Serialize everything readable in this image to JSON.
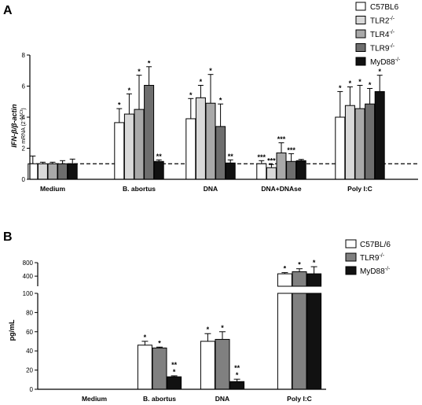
{
  "figure": {
    "panel_a_letter": "A",
    "panel_b_letter": "B"
  },
  "chart_data": [
    {
      "type": "bar",
      "panel": "A",
      "ylabel": "IFN-β/β-actin",
      "ylabel_sub": "mRNA (2",
      "ylabel_sub_exp": "-ΔΔCt",
      "ylabel_sub_close": ")",
      "ylim": [
        0,
        8
      ],
      "yticks": [
        0,
        2,
        4,
        6,
        8
      ],
      "reference_line": 1,
      "categories": [
        "Medium",
        "B. abortus",
        "DNA",
        "DNA+DNAse",
        "Poly I:C"
      ],
      "series": [
        {
          "name": "C57BL6",
          "sup": "",
          "fill": "#ffffff",
          "values": [
            1.0,
            3.65,
            3.9,
            1.0,
            4.0
          ],
          "errors": [
            0.5,
            0.9,
            1.3,
            0.2,
            1.65
          ],
          "marks": [
            "",
            "*",
            "*",
            "***",
            "*"
          ]
        },
        {
          "name": "TLR2",
          "sup": "-/-",
          "fill": "#d9d9d9",
          "values": [
            1.0,
            4.2,
            5.25,
            0.75,
            4.75
          ],
          "errors": [
            0.1,
            1.3,
            0.8,
            0.2,
            1.2
          ],
          "marks": [
            "",
            "*",
            "*",
            "***",
            "*"
          ]
        },
        {
          "name": "TLR4",
          "sup": "-/-",
          "fill": "#a9a9a9",
          "values": [
            1.0,
            4.5,
            4.9,
            1.7,
            4.55
          ],
          "errors": [
            0.1,
            2.2,
            1.85,
            0.65,
            1.5
          ],
          "marks": [
            "",
            "*",
            "*",
            "***",
            "*"
          ]
        },
        {
          "name": "TLR9",
          "sup": "-/-",
          "fill": "#6e6e6e",
          "values": [
            1.0,
            6.05,
            3.4,
            1.15,
            4.85
          ],
          "errors": [
            0.2,
            1.2,
            1.45,
            0.5,
            1.0
          ],
          "marks": [
            "",
            "*",
            "*",
            "***",
            "*"
          ]
        },
        {
          "name": "MyD88",
          "sup": "-/-",
          "fill": "#111111",
          "values": [
            1.0,
            1.15,
            1.05,
            1.2,
            5.65
          ],
          "errors": [
            0.3,
            0.1,
            0.2,
            0.08,
            1.05
          ],
          "marks": [
            "",
            "**",
            "**",
            "",
            "*"
          ]
        }
      ]
    },
    {
      "type": "bar",
      "panel": "B",
      "ylabel": "pg/mL",
      "y_axis_broken": true,
      "ylim_lower": [
        0,
        100
      ],
      "yticks_lower": [
        0,
        20,
        40,
        60,
        80,
        100
      ],
      "ylim_upper": [
        100,
        800
      ],
      "yticks_upper": [
        400,
        800
      ],
      "categories": [
        "Medium",
        "B. abortus",
        "DNA",
        "Poly I:C"
      ],
      "series": [
        {
          "name": "C57BL/6",
          "sup": "",
          "fill": "#ffffff",
          "values": [
            0,
            46,
            50,
            470
          ],
          "errors": [
            0,
            4,
            8,
            35
          ],
          "marks": [
            "",
            "*",
            "*",
            "*"
          ]
        },
        {
          "name": "TLR9",
          "sup": "-/-",
          "fill": "#808080",
          "values": [
            0,
            43,
            52,
            530
          ],
          "errors": [
            0,
            1,
            8,
            90
          ],
          "marks": [
            "",
            "*",
            "*",
            "*"
          ]
        },
        {
          "name": "MyD88",
          "sup": "-/-",
          "fill": "#111111",
          "values": [
            0,
            13,
            8,
            470
          ],
          "errors": [
            0,
            1,
            2.5,
            210
          ],
          "marks": [
            "",
            "**|*",
            "**|*",
            "*"
          ]
        }
      ]
    }
  ]
}
